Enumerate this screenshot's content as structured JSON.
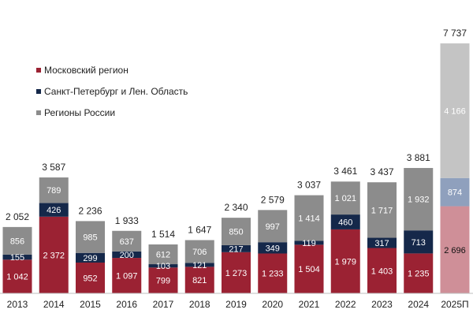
{
  "chart_data": {
    "type": "bar",
    "stacked": true,
    "categories": [
      "2013",
      "2014",
      "2015",
      "2016",
      "2017",
      "2018",
      "2019",
      "2020",
      "2021",
      "2022",
      "2023",
      "2024",
      "2025П"
    ],
    "series": [
      {
        "name": "Московский регион",
        "color": "#9b2233",
        "forecast_color": "#cf8f98",
        "values": [
          1042,
          2372,
          952,
          1097,
          799,
          821,
          1273,
          1233,
          1504,
          1979,
          1403,
          1235,
          2696
        ],
        "labels": [
          "1 042",
          "2 372",
          "952",
          "1 097",
          "799",
          "821",
          "1 273",
          "1 233",
          "1 504",
          "1 979",
          "1 403",
          "1 235",
          "2 696"
        ]
      },
      {
        "name": "Санкт-Петербург и Лен. Область",
        "color": "#15284a",
        "forecast_color": "#8fa0bd",
        "values": [
          155,
          426,
          299,
          200,
          103,
          121,
          217,
          349,
          119,
          460,
          317,
          713,
          874
        ],
        "labels": [
          "155",
          "426",
          "299",
          "200",
          "103",
          "121",
          "217",
          "349",
          "119",
          "460",
          "317",
          "713",
          "874"
        ]
      },
      {
        "name": "Регионы России",
        "color": "#8c8c8c",
        "forecast_color": "#c4c4c4",
        "values": [
          856,
          789,
          985,
          637,
          612,
          706,
          850,
          997,
          1414,
          1021,
          1717,
          1932,
          4166
        ],
        "labels": [
          "856",
          "789",
          "985",
          "637",
          "612",
          "706",
          "850",
          "997",
          "1 414",
          "1 021",
          "1 717",
          "1 932",
          "4 166"
        ]
      }
    ],
    "totals": [
      "2 052",
      "3 587",
      "2 236",
      "1 933",
      "1 514",
      "1 647",
      "2 340",
      "2 579",
      "3 037",
      "3 461",
      "3 437",
      "3 881",
      "7 737"
    ],
    "ylim": [
      0,
      7737
    ],
    "forecast_index": 12,
    "legend_position": "top-left",
    "grid": false,
    "title": "",
    "xlabel": "",
    "ylabel": ""
  }
}
